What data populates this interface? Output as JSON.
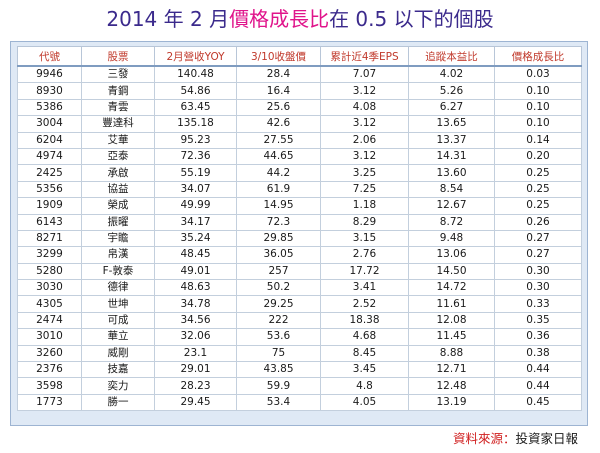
{
  "title": {
    "part1": "2014 年 2 月",
    "part2": "價格成長比",
    "part3": "在 0.5 以下的個股"
  },
  "table": {
    "headers": [
      "代號",
      "股票",
      "2月營收YOY",
      "3/10收盤價",
      "累計近4季EPS",
      "追蹤本益比",
      "價格成長比"
    ],
    "rows": [
      [
        "9946",
        "三發",
        "140.48",
        "28.4",
        "7.07",
        "4.02",
        "0.03"
      ],
      [
        "8930",
        "青鋼",
        "54.86",
        "16.4",
        "3.12",
        "5.26",
        "0.10"
      ],
      [
        "5386",
        "青雲",
        "63.45",
        "25.6",
        "4.08",
        "6.27",
        "0.10"
      ],
      [
        "3004",
        "豐達科",
        "135.18",
        "42.6",
        "3.12",
        "13.65",
        "0.10"
      ],
      [
        "6204",
        "艾華",
        "95.23",
        "27.55",
        "2.06",
        "13.37",
        "0.14"
      ],
      [
        "4974",
        "亞泰",
        "72.36",
        "44.65",
        "3.12",
        "14.31",
        "0.20"
      ],
      [
        "2425",
        "承啟",
        "55.19",
        "44.2",
        "3.25",
        "13.60",
        "0.25"
      ],
      [
        "5356",
        "協益",
        "34.07",
        "61.9",
        "7.25",
        "8.54",
        "0.25"
      ],
      [
        "1909",
        "榮成",
        "49.99",
        "14.95",
        "1.18",
        "12.67",
        "0.25"
      ],
      [
        "6143",
        "振曜",
        "34.17",
        "72.3",
        "8.29",
        "8.72",
        "0.26"
      ],
      [
        "8271",
        "宇瞻",
        "35.24",
        "29.85",
        "3.15",
        "9.48",
        "0.27"
      ],
      [
        "3299",
        "帛漢",
        "48.45",
        "36.05",
        "2.76",
        "13.06",
        "0.27"
      ],
      [
        "5280",
        "F-敦泰",
        "49.01",
        "257",
        "17.72",
        "14.50",
        "0.30"
      ],
      [
        "3030",
        "德律",
        "48.63",
        "50.2",
        "3.41",
        "14.72",
        "0.30"
      ],
      [
        "4305",
        "世坤",
        "34.78",
        "29.25",
        "2.52",
        "11.61",
        "0.33"
      ],
      [
        "2474",
        "可成",
        "34.56",
        "222",
        "18.38",
        "12.08",
        "0.35"
      ],
      [
        "3010",
        "華立",
        "32.06",
        "53.6",
        "4.68",
        "11.45",
        "0.36"
      ],
      [
        "3260",
        "威剛",
        "23.1",
        "75",
        "8.45",
        "8.88",
        "0.38"
      ],
      [
        "2376",
        "技嘉",
        "29.01",
        "43.85",
        "3.45",
        "12.71",
        "0.44"
      ],
      [
        "3598",
        "奕力",
        "28.23",
        "59.9",
        "4.8",
        "12.48",
        "0.44"
      ],
      [
        "1773",
        "勝一",
        "29.45",
        "53.4",
        "4.05",
        "13.19",
        "0.45"
      ]
    ]
  },
  "source": {
    "label": "資料來源：",
    "value": "投資家日報"
  },
  "colors": {
    "title": "#3b2a8c",
    "title_accent": "#e0148b",
    "header_text": "#c0392b",
    "frame": "#dfe9f5"
  }
}
